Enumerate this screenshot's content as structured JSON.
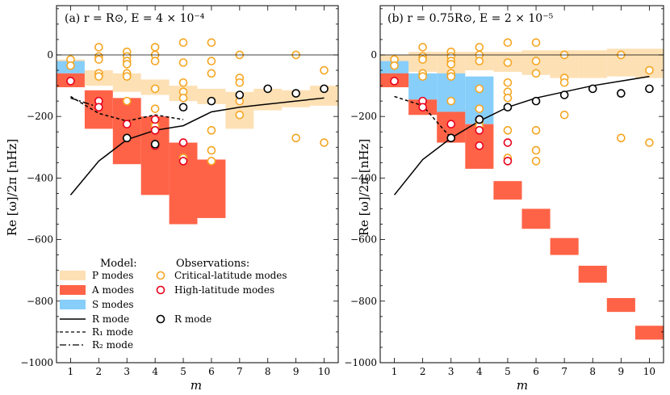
{
  "colors": {
    "p_modes": "#fde0b4",
    "a_modes": "#ff6347",
    "s_modes": "#87cefa",
    "r_mode": "#000000",
    "critical_obs": "#f5a623",
    "highlat_obs": "#e8001c",
    "r_obs": "#000000"
  },
  "chart_data": [
    {
      "type": "band-line-scatter",
      "title": "(a) r = R⊙, E = 4 × 10⁻⁴",
      "xlabel": "m",
      "ylabel": "Re [ω]/2π  [nHz]",
      "xlim": [
        0.5,
        10.5
      ],
      "ylim": [
        -1000,
        160
      ],
      "xticks": [
        1,
        2,
        3,
        4,
        5,
        6,
        7,
        8,
        9,
        10
      ],
      "yticks": [
        -1000,
        -800,
        -600,
        -400,
        -200,
        0
      ],
      "p_modes": [
        [
          1,
          -35,
          -15
        ],
        [
          2,
          -100,
          -50
        ],
        [
          3,
          -120,
          -60
        ],
        [
          4,
          -130,
          -80
        ],
        [
          5,
          -150,
          -100
        ],
        [
          6,
          -160,
          -110
        ],
        [
          7,
          -240,
          -120
        ],
        [
          8,
          -180,
          -110
        ],
        [
          9,
          -170,
          -115
        ],
        [
          10,
          -165,
          -100
        ]
      ],
      "s_modes": [
        [
          1,
          -60,
          -20
        ]
      ],
      "a_modes": [
        [
          1,
          -105,
          -60
        ],
        [
          2,
          -240,
          -115
        ],
        [
          3,
          -355,
          -140
        ],
        [
          4,
          -455,
          -200
        ],
        [
          5,
          -550,
          -285
        ],
        [
          6,
          -530,
          -340
        ]
      ],
      "r_mode": {
        "x": [
          1,
          2,
          3,
          4,
          5,
          6,
          7,
          8,
          9,
          10
        ],
        "y": [
          -455,
          -345,
          -275,
          -245,
          -230,
          -185,
          -170,
          -160,
          -150,
          -140
        ]
      },
      "r1_mode": {
        "x": [
          1,
          2,
          3,
          4,
          5
        ],
        "y": [
          -135,
          -190,
          -215,
          -195,
          -210
        ]
      },
      "r2_mode": {
        "x": [
          1,
          2
        ],
        "y": [
          -140,
          -170
        ]
      },
      "obs_critical": [
        [
          1,
          -15
        ],
        [
          1,
          -35
        ],
        [
          2,
          25
        ],
        [
          2,
          -5
        ],
        [
          2,
          -15
        ],
        [
          2,
          -60
        ],
        [
          2,
          -70
        ],
        [
          3,
          10
        ],
        [
          3,
          -5
        ],
        [
          3,
          -20
        ],
        [
          3,
          -30
        ],
        [
          3,
          -60
        ],
        [
          3,
          -70
        ],
        [
          3,
          -150
        ],
        [
          3,
          -270
        ],
        [
          4,
          25
        ],
        [
          4,
          0
        ],
        [
          4,
          -20
        ],
        [
          4,
          -110
        ],
        [
          4,
          -175
        ],
        [
          4,
          -215
        ],
        [
          4,
          -230
        ],
        [
          5,
          40
        ],
        [
          5,
          -25
        ],
        [
          5,
          -90
        ],
        [
          5,
          -120
        ],
        [
          5,
          -140
        ],
        [
          5,
          -335
        ],
        [
          6,
          40
        ],
        [
          6,
          -20
        ],
        [
          6,
          -60
        ],
        [
          6,
          -245
        ],
        [
          6,
          -310
        ],
        [
          6,
          -345
        ],
        [
          7,
          0
        ],
        [
          7,
          -75
        ],
        [
          7,
          -90
        ],
        [
          7,
          -150
        ],
        [
          7,
          -195
        ],
        [
          9,
          0
        ],
        [
          9,
          -270
        ],
        [
          10,
          -50
        ],
        [
          10,
          -285
        ]
      ],
      "obs_highlat": [
        [
          1,
          -85
        ],
        [
          2,
          -150
        ],
        [
          2,
          -170
        ],
        [
          3,
          -225
        ],
        [
          4,
          -210
        ],
        [
          4,
          -245
        ],
        [
          4,
          -295
        ],
        [
          5,
          -285
        ],
        [
          5,
          -345
        ]
      ],
      "obs_r": [
        [
          3,
          -270
        ],
        [
          4,
          -290
        ],
        [
          5,
          -170
        ],
        [
          6,
          -150
        ],
        [
          7,
          -130
        ],
        [
          8,
          -110
        ],
        [
          9,
          -125
        ],
        [
          10,
          -110
        ]
      ],
      "legend": {
        "model_title": "Model:",
        "obs_title": "Observations:",
        "p_label": "P modes",
        "a_label": "A modes",
        "s_label": "S modes",
        "r_label": "R mode",
        "r1_label": "R₁ mode",
        "r2_label": "R₂ mode",
        "critical_label": "Critical-latitude modes",
        "highlat_label": "High-latitude modes",
        "robs_label": "R mode"
      }
    },
    {
      "type": "band-line-scatter",
      "title": "(b) r = 0.75R⊙, E = 2 × 10⁻⁵",
      "xlabel": "m",
      "ylabel": "Re [ω]/2π  [nHz]",
      "xlim": [
        0.5,
        10.5
      ],
      "ylim": [
        -1000,
        160
      ],
      "xticks": [
        1,
        2,
        3,
        4,
        5,
        6,
        7,
        8,
        9,
        10
      ],
      "yticks": [
        -1000,
        -800,
        -600,
        -400,
        -200,
        0
      ],
      "p_modes": [
        [
          1,
          -20,
          0
        ],
        [
          2,
          -55,
          10
        ],
        [
          3,
          -60,
          10
        ],
        [
          4,
          -50,
          10
        ],
        [
          5,
          -55,
          10
        ],
        [
          6,
          -65,
          15
        ],
        [
          7,
          -75,
          15
        ],
        [
          8,
          -75,
          15
        ],
        [
          9,
          -70,
          20
        ],
        [
          10,
          -75,
          20
        ]
      ],
      "s_modes": [
        [
          1,
          -100,
          -20
        ],
        [
          2,
          -145,
          -60
        ],
        [
          3,
          -185,
          -60
        ],
        [
          4,
          -225,
          -70
        ]
      ],
      "a_modes": [
        [
          1,
          -105,
          -60
        ],
        [
          2,
          -195,
          -145
        ],
        [
          3,
          -285,
          -185
        ],
        [
          4,
          -370,
          -225
        ],
        [
          5,
          -470,
          -410
        ],
        [
          6,
          -565,
          -500
        ],
        [
          7,
          -650,
          -595
        ],
        [
          8,
          -740,
          -685
        ],
        [
          9,
          -835,
          -790
        ],
        [
          10,
          -925,
          -880
        ]
      ],
      "r_mode": {
        "x": [
          1,
          2,
          3,
          4,
          5,
          6,
          7,
          8,
          9,
          10
        ],
        "y": [
          -455,
          -340,
          -270,
          -215,
          -170,
          -140,
          -120,
          -100,
          -85,
          -70
        ]
      },
      "r1_mode": {
        "x": [
          1,
          2,
          3
        ],
        "y": [
          -135,
          -165,
          -270
        ]
      },
      "obs_critical": [
        [
          1,
          -15
        ],
        [
          1,
          -35
        ],
        [
          2,
          25
        ],
        [
          2,
          -5
        ],
        [
          2,
          -15
        ],
        [
          2,
          -60
        ],
        [
          2,
          -70
        ],
        [
          3,
          10
        ],
        [
          3,
          -5
        ],
        [
          3,
          -20
        ],
        [
          3,
          -30
        ],
        [
          3,
          -60
        ],
        [
          3,
          -70
        ],
        [
          3,
          -150
        ],
        [
          4,
          25
        ],
        [
          4,
          0
        ],
        [
          4,
          -20
        ],
        [
          4,
          -110
        ],
        [
          4,
          -175
        ],
        [
          4,
          -215
        ],
        [
          4,
          -230
        ],
        [
          5,
          40
        ],
        [
          5,
          -25
        ],
        [
          5,
          -90
        ],
        [
          5,
          -120
        ],
        [
          5,
          -140
        ],
        [
          5,
          -245
        ],
        [
          5,
          -335
        ],
        [
          6,
          40
        ],
        [
          6,
          -20
        ],
        [
          6,
          -60
        ],
        [
          6,
          -245
        ],
        [
          6,
          -310
        ],
        [
          6,
          -345
        ],
        [
          7,
          0
        ],
        [
          7,
          -75
        ],
        [
          7,
          -90
        ],
        [
          7,
          -195
        ],
        [
          9,
          0
        ],
        [
          9,
          -270
        ],
        [
          10,
          -50
        ],
        [
          10,
          -285
        ]
      ],
      "obs_highlat": [
        [
          1,
          -85
        ],
        [
          2,
          -150
        ],
        [
          2,
          -170
        ],
        [
          3,
          -225
        ],
        [
          4,
          -210
        ],
        [
          4,
          -245
        ],
        [
          4,
          -295
        ],
        [
          5,
          -285
        ],
        [
          5,
          -345
        ]
      ],
      "obs_r": [
        [
          3,
          -270
        ],
        [
          4,
          -210
        ],
        [
          5,
          -170
        ],
        [
          6,
          -150
        ],
        [
          7,
          -130
        ],
        [
          8,
          -110
        ],
        [
          9,
          -125
        ],
        [
          10,
          -110
        ]
      ]
    }
  ]
}
